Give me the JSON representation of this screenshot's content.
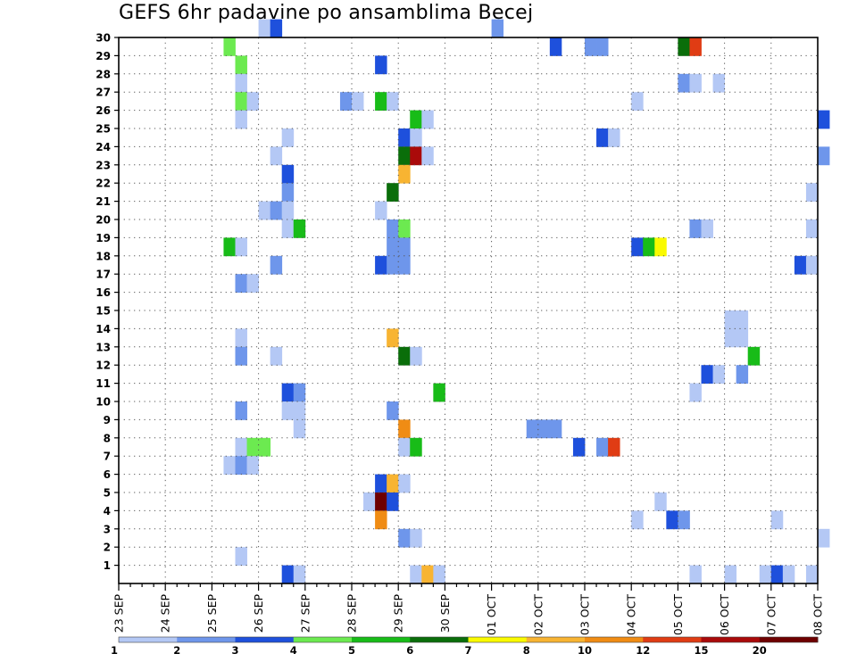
{
  "chart_data": {
    "type": "heatmap",
    "title": "GEFS 6hr padavine po ansamblima Becej",
    "x_ticks": [
      "23 SEP",
      "24 SEP",
      "25 SEP",
      "26 SEP",
      "27 SEP",
      "28 SEP",
      "29 SEP",
      "30 SEP",
      "01 OCT",
      "02 OCT",
      "03 OCT",
      "04 OCT",
      "05 OCT",
      "06 OCT",
      "07 OCT",
      "08 OCT"
    ],
    "x_range": [
      "23 SEP 00Z",
      "08 OCT 00Z"
    ],
    "x_step_hours": 6,
    "y_ticks": [
      1,
      2,
      3,
      4,
      5,
      6,
      7,
      8,
      9,
      10,
      11,
      12,
      13,
      14,
      15,
      16,
      17,
      18,
      19,
      20,
      21,
      22,
      23,
      24,
      25,
      26,
      27,
      28,
      29,
      30
    ],
    "y_range": [
      0,
      30
    ],
    "grid": true,
    "colorbar": {
      "levels": [
        "1",
        "2",
        "3",
        "4",
        "5",
        "6",
        "7",
        "8",
        "10",
        "12",
        "15",
        "20"
      ],
      "colors": [
        "#b4c8f5",
        "#6e96eb",
        "#1e50dc",
        "#6cea50",
        "#18bc18",
        "#0a6e0a",
        "#fafa00",
        "#f8b432",
        "#f08c14",
        "#e03c14",
        "#aa0a0a",
        "#6e0000"
      ]
    },
    "cells": [
      {
        "member": 30,
        "step": 12,
        "level": 1
      },
      {
        "member": 30,
        "step": 13,
        "level": 3
      },
      {
        "member": 30,
        "step": 32,
        "level": 2
      },
      {
        "member": 29,
        "step": 9,
        "level": 4
      },
      {
        "member": 29,
        "step": 37,
        "level": 3
      },
      {
        "member": 29,
        "step": 40,
        "level": 2
      },
      {
        "member": 29,
        "step": 41,
        "level": 2
      },
      {
        "member": 29,
        "step": 48,
        "level": 6
      },
      {
        "member": 29,
        "step": 49,
        "level": 10
      },
      {
        "member": 28,
        "step": 10,
        "level": 4
      },
      {
        "member": 28,
        "step": 22,
        "level": 3
      },
      {
        "member": 27,
        "step": 10,
        "level": 1
      },
      {
        "member": 27,
        "step": 48,
        "level": 2
      },
      {
        "member": 27,
        "step": 49,
        "level": 1
      },
      {
        "member": 27,
        "step": 51,
        "level": 1
      },
      {
        "member": 26,
        "step": 10,
        "level": 4
      },
      {
        "member": 26,
        "step": 11,
        "level": 1
      },
      {
        "member": 26,
        "step": 19,
        "level": 2
      },
      {
        "member": 26,
        "step": 20,
        "level": 1
      },
      {
        "member": 26,
        "step": 22,
        "level": 5
      },
      {
        "member": 26,
        "step": 23,
        "level": 1
      },
      {
        "member": 26,
        "step": 44,
        "level": 1
      },
      {
        "member": 25,
        "step": 10,
        "level": 1
      },
      {
        "member": 25,
        "step": 25,
        "level": 5
      },
      {
        "member": 25,
        "step": 26,
        "level": 1
      },
      {
        "member": 25,
        "step": 60,
        "level": 3
      },
      {
        "member": 24,
        "step": 14,
        "level": 1
      },
      {
        "member": 24,
        "step": 24,
        "level": 3
      },
      {
        "member": 24,
        "step": 25,
        "level": 1
      },
      {
        "member": 24,
        "step": 41,
        "level": 3
      },
      {
        "member": 24,
        "step": 42,
        "level": 1
      },
      {
        "member": 23,
        "step": 13,
        "level": 1
      },
      {
        "member": 23,
        "step": 24,
        "level": 6
      },
      {
        "member": 23,
        "step": 25,
        "level": 11
      },
      {
        "member": 23,
        "step": 26,
        "level": 1
      },
      {
        "member": 23,
        "step": 60,
        "level": 2
      },
      {
        "member": 22,
        "step": 14,
        "level": 3
      },
      {
        "member": 22,
        "step": 24,
        "level": 8
      },
      {
        "member": 21,
        "step": 14,
        "level": 2
      },
      {
        "member": 21,
        "step": 23,
        "level": 6
      },
      {
        "member": 21,
        "step": 59,
        "level": 1
      },
      {
        "member": 20,
        "step": 12,
        "level": 1
      },
      {
        "member": 20,
        "step": 13,
        "level": 2
      },
      {
        "member": 20,
        "step": 14,
        "level": 1
      },
      {
        "member": 20,
        "step": 22,
        "level": 1
      },
      {
        "member": 19,
        "step": 14,
        "level": 1
      },
      {
        "member": 19,
        "step": 15,
        "level": 5
      },
      {
        "member": 19,
        "step": 23,
        "level": 2
      },
      {
        "member": 19,
        "step": 24,
        "level": 4
      },
      {
        "member": 19,
        "step": 49,
        "level": 2
      },
      {
        "member": 19,
        "step": 50,
        "level": 1
      },
      {
        "member": 19,
        "step": 59,
        "level": 1
      },
      {
        "member": 18,
        "step": 9,
        "level": 5
      },
      {
        "member": 18,
        "step": 10,
        "level": 1
      },
      {
        "member": 18,
        "step": 23,
        "level": 2
      },
      {
        "member": 18,
        "step": 24,
        "level": 2
      },
      {
        "member": 18,
        "step": 44,
        "level": 3
      },
      {
        "member": 18,
        "step": 45,
        "level": 5
      },
      {
        "member": 18,
        "step": 46,
        "level": 7
      },
      {
        "member": 17,
        "step": 13,
        "level": 2
      },
      {
        "member": 17,
        "step": 22,
        "level": 3
      },
      {
        "member": 17,
        "step": 23,
        "level": 2
      },
      {
        "member": 17,
        "step": 24,
        "level": 2
      },
      {
        "member": 17,
        "step": 58,
        "level": 3
      },
      {
        "member": 17,
        "step": 59,
        "level": 1
      },
      {
        "member": 16,
        "step": 10,
        "level": 2
      },
      {
        "member": 16,
        "step": 11,
        "level": 1
      },
      {
        "member": 14,
        "step": 52,
        "level": 1
      },
      {
        "member": 14,
        "step": 53,
        "level": 1
      },
      {
        "member": 13,
        "step": 10,
        "level": 1
      },
      {
        "member": 13,
        "step": 23,
        "level": 8
      },
      {
        "member": 13,
        "step": 52,
        "level": 1
      },
      {
        "member": 13,
        "step": 53,
        "level": 1
      },
      {
        "member": 12,
        "step": 10,
        "level": 2
      },
      {
        "member": 12,
        "step": 13,
        "level": 1
      },
      {
        "member": 12,
        "step": 24,
        "level": 6
      },
      {
        "member": 12,
        "step": 25,
        "level": 1
      },
      {
        "member": 12,
        "step": 54,
        "level": 5
      },
      {
        "member": 11,
        "step": 50,
        "level": 3
      },
      {
        "member": 11,
        "step": 51,
        "level": 1
      },
      {
        "member": 11,
        "step": 53,
        "level": 2
      },
      {
        "member": 10,
        "step": 14,
        "level": 3
      },
      {
        "member": 10,
        "step": 15,
        "level": 2
      },
      {
        "member": 10,
        "step": 27,
        "level": 5
      },
      {
        "member": 10,
        "step": 49,
        "level": 1
      },
      {
        "member": 9,
        "step": 10,
        "level": 2
      },
      {
        "member": 9,
        "step": 14,
        "level": 1
      },
      {
        "member": 9,
        "step": 15,
        "level": 1
      },
      {
        "member": 9,
        "step": 23,
        "level": 2
      },
      {
        "member": 8,
        "step": 15,
        "level": 1
      },
      {
        "member": 8,
        "step": 24,
        "level": 9
      },
      {
        "member": 8,
        "step": 35,
        "level": 2
      },
      {
        "member": 8,
        "step": 36,
        "level": 2
      },
      {
        "member": 8,
        "step": 37,
        "level": 2
      },
      {
        "member": 7,
        "step": 10,
        "level": 1
      },
      {
        "member": 7,
        "step": 11,
        "level": 4
      },
      {
        "member": 7,
        "step": 12,
        "level": 4
      },
      {
        "member": 7,
        "step": 24,
        "level": 1
      },
      {
        "member": 7,
        "step": 25,
        "level": 5
      },
      {
        "member": 7,
        "step": 39,
        "level": 3
      },
      {
        "member": 7,
        "step": 41,
        "level": 2
      },
      {
        "member": 7,
        "step": 42,
        "level": 10
      },
      {
        "member": 6,
        "step": 9,
        "level": 1
      },
      {
        "member": 6,
        "step": 10,
        "level": 2
      },
      {
        "member": 6,
        "step": 11,
        "level": 1
      },
      {
        "member": 5,
        "step": 22,
        "level": 3
      },
      {
        "member": 5,
        "step": 23,
        "level": 8
      },
      {
        "member": 5,
        "step": 24,
        "level": 1
      },
      {
        "member": 4,
        "step": 21,
        "level": 1
      },
      {
        "member": 4,
        "step": 22,
        "level": 12
      },
      {
        "member": 4,
        "step": 23,
        "level": 3
      },
      {
        "member": 4,
        "step": 46,
        "level": 1
      },
      {
        "member": 3,
        "step": 22,
        "level": 9
      },
      {
        "member": 3,
        "step": 44,
        "level": 1
      },
      {
        "member": 3,
        "step": 47,
        "level": 3
      },
      {
        "member": 3,
        "step": 48,
        "level": 2
      },
      {
        "member": 3,
        "step": 56,
        "level": 1
      },
      {
        "member": 2,
        "step": 24,
        "level": 2
      },
      {
        "member": 2,
        "step": 25,
        "level": 1
      },
      {
        "member": 2,
        "step": 60,
        "level": 1
      },
      {
        "member": 1,
        "step": 10,
        "level": 1
      },
      {
        "member": 0,
        "step": 14,
        "level": 3
      },
      {
        "member": 0,
        "step": 15,
        "level": 1
      },
      {
        "member": 0,
        "step": 25,
        "level": 1
      },
      {
        "member": 0,
        "step": 26,
        "level": 8
      },
      {
        "member": 0,
        "step": 27,
        "level": 1
      },
      {
        "member": 0,
        "step": 49,
        "level": 1
      },
      {
        "member": 0,
        "step": 52,
        "level": 1
      },
      {
        "member": 0,
        "step": 55,
        "level": 1
      },
      {
        "member": 0,
        "step": 56,
        "level": 3
      },
      {
        "member": 0,
        "step": 57,
        "level": 1
      },
      {
        "member": 0,
        "step": 59,
        "level": 1
      }
    ]
  }
}
